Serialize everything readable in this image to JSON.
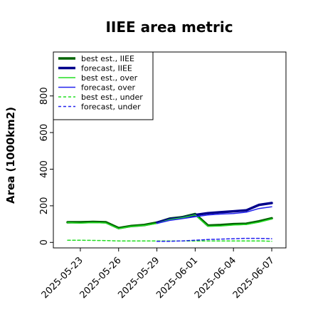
{
  "chart_data": {
    "type": "line",
    "title": "IIEE area metric",
    "xlabel": "",
    "ylabel": "Area (1000km2)",
    "x": [
      "2025-05-22",
      "2025-05-23",
      "2025-05-24",
      "2025-05-25",
      "2025-05-26",
      "2025-05-27",
      "2025-05-28",
      "2025-05-29",
      "2025-05-30",
      "2025-05-31",
      "2025-06-01",
      "2025-06-02",
      "2025-06-03",
      "2025-06-04",
      "2025-06-05",
      "2025-06-06",
      "2025-06-07"
    ],
    "x_tick_labels": [
      "2025-05-23",
      "2025-05-26",
      "2025-05-29",
      "2025-06-01",
      "2025-06-04",
      "2025-06-07"
    ],
    "x_tick_colors": [
      "#000000",
      "#000000",
      "#2e8b2e",
      "#000000",
      "#000000",
      "#000000"
    ],
    "ylim": [
      -30,
      1040
    ],
    "y_ticks": [
      0,
      200,
      400,
      600,
      800
    ],
    "grid": false,
    "legend_position": "top-left",
    "series": [
      {
        "name": "best est., IIEE",
        "color": "#006400",
        "width": 3.5,
        "dash": "solid",
        "values": [
          110,
          110,
          112,
          110,
          78,
          90,
          95,
          108,
          130,
          138,
          155,
          92,
          95,
          100,
          102,
          115,
          132
        ]
      },
      {
        "name": "forecast, IIEE",
        "color": "#00008b",
        "width": 3.5,
        "dash": "solid",
        "values": [
          null,
          null,
          null,
          null,
          null,
          null,
          null,
          108,
          128,
          135,
          150,
          160,
          165,
          170,
          175,
          205,
          215
        ]
      },
      {
        "name": "best est., over",
        "color": "#22dd22",
        "width": 1.5,
        "dash": "solid",
        "values": [
          108,
          105,
          108,
          106,
          75,
          87,
          92,
          104,
          125,
          135,
          150,
          88,
          90,
          95,
          98,
          110,
          128
        ]
      },
      {
        "name": "forecast, over",
        "color": "#2222ee",
        "width": 1.5,
        "dash": "solid",
        "values": [
          null,
          null,
          null,
          null,
          null,
          null,
          null,
          104,
          120,
          130,
          140,
          150,
          155,
          158,
          165,
          185,
          195
        ]
      },
      {
        "name": "best est., under",
        "color": "#22dd22",
        "width": 1.5,
        "dash": "dashed",
        "values": [
          12,
          12,
          11,
          10,
          8,
          8,
          8,
          8,
          8,
          8,
          8,
          8,
          8,
          8,
          8,
          8,
          6
        ]
      },
      {
        "name": "forecast, under",
        "color": "#2222ee",
        "width": 1.5,
        "dash": "dashed",
        "values": [
          null,
          null,
          null,
          null,
          null,
          null,
          null,
          6,
          6,
          8,
          12,
          16,
          18,
          20,
          22,
          22,
          20
        ]
      }
    ]
  }
}
